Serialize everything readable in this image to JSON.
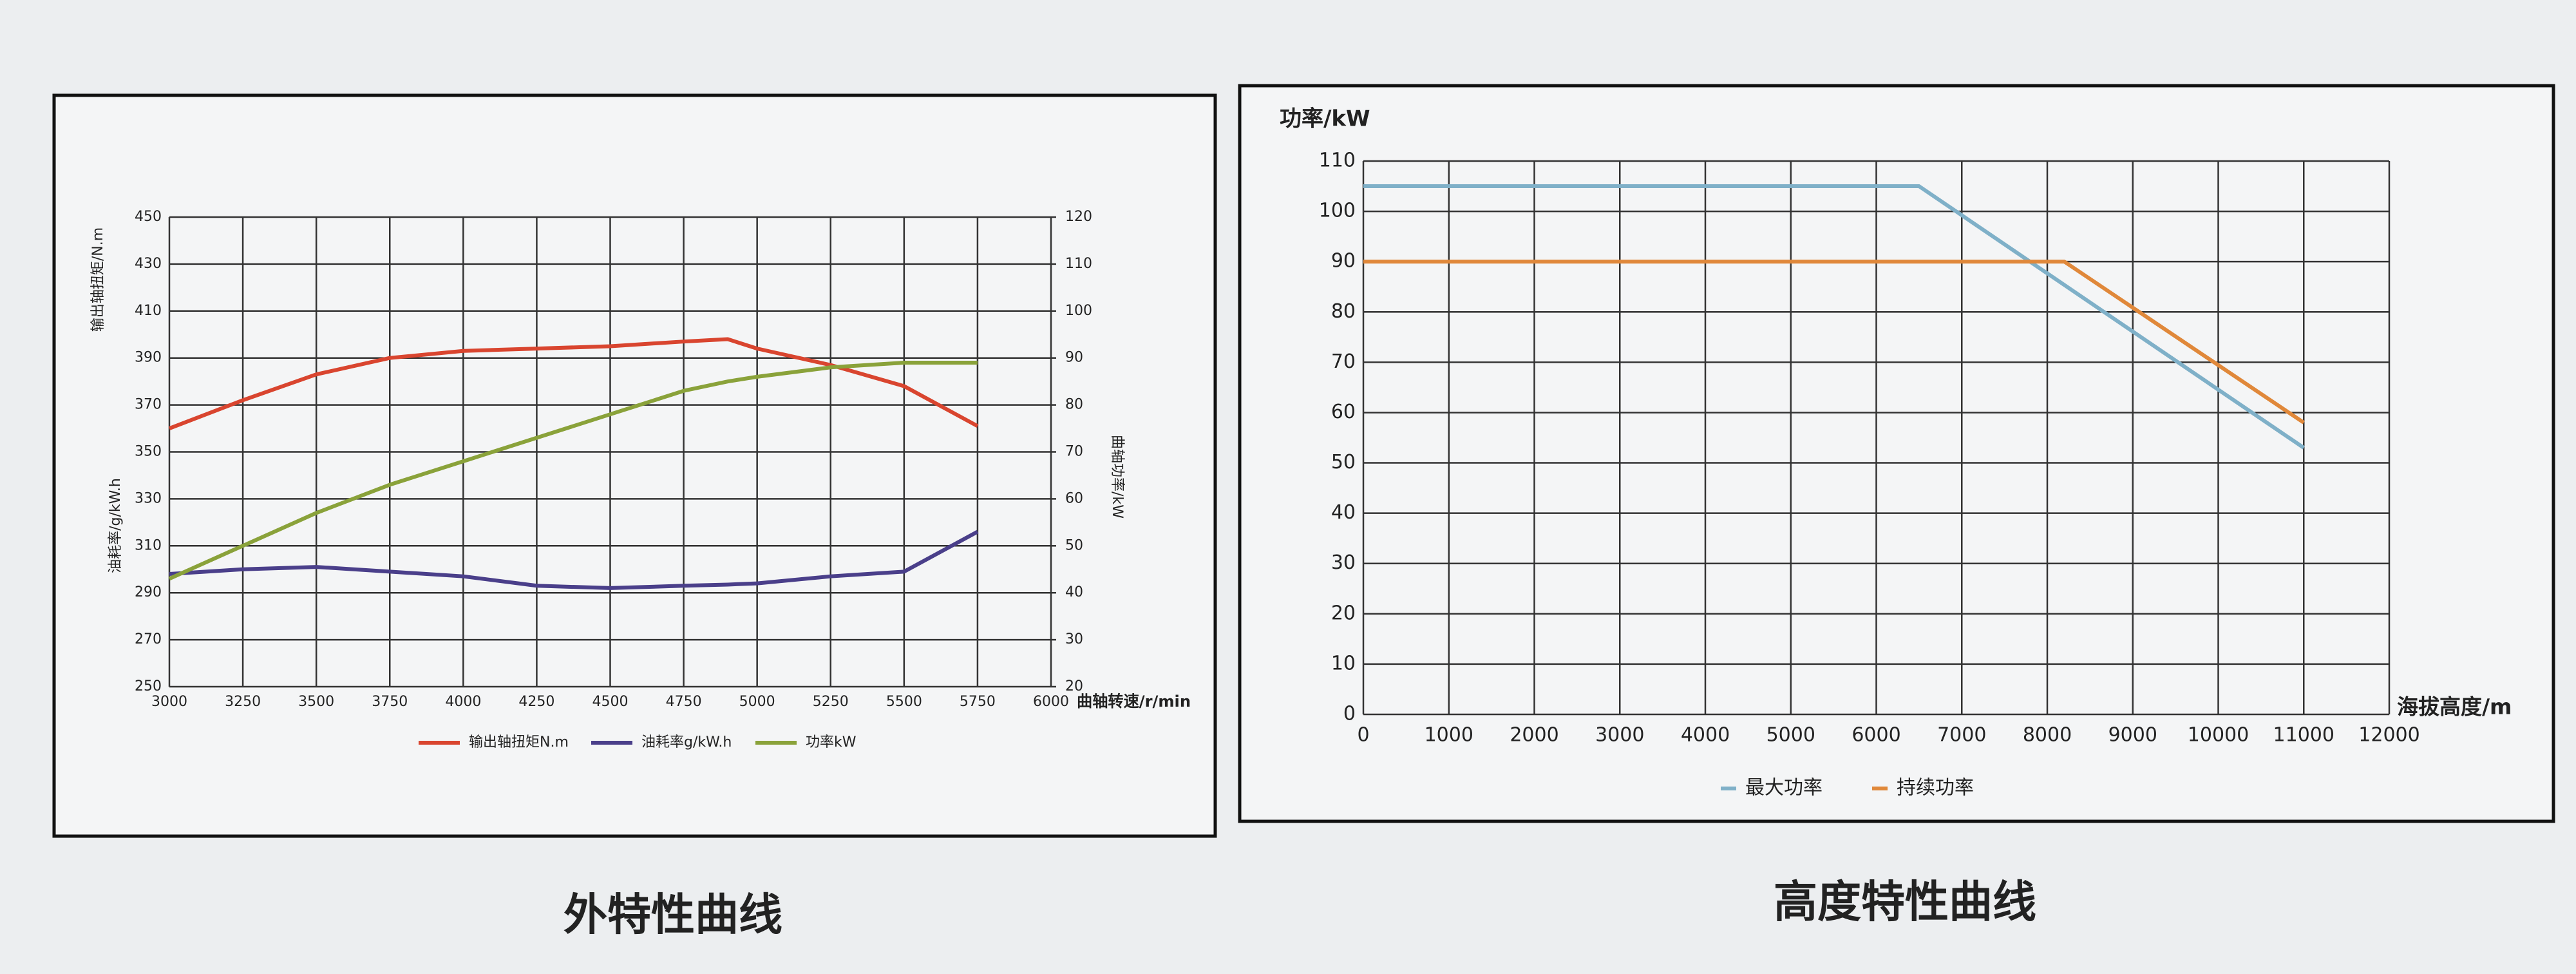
{
  "chart_data": [
    {
      "type": "line",
      "title": "外特性曲线",
      "xlabel": "曲轴转速/r/min",
      "ylabels": [
        "输出轴扭矩/N.m",
        "油耗率/g/kW.h"
      ],
      "y2label": "曲轴功率/kW",
      "x": [
        3000,
        3250,
        3500,
        3750,
        4000,
        4250,
        4500,
        4750,
        4900,
        5000,
        5250,
        5500,
        5750
      ],
      "xlim": [
        3000,
        6000
      ],
      "xticks": [
        3000,
        3250,
        3500,
        3750,
        4000,
        4250,
        4500,
        4750,
        5000,
        5250,
        5500,
        5750,
        6000
      ],
      "ylim": [
        250,
        450
      ],
      "yticks": [
        250,
        270,
        290,
        310,
        330,
        350,
        370,
        390,
        410,
        430,
        450
      ],
      "y2lim": [
        20,
        120
      ],
      "y2ticks": [
        20,
        30,
        40,
        50,
        60,
        70,
        80,
        90,
        100,
        110,
        120
      ],
      "grid": true,
      "legend": "bottom",
      "series": [
        {
          "name": "输出轴扭矩N.m",
          "color": "#d9452f",
          "values": [
            360,
            372,
            383,
            390,
            393,
            394,
            395,
            397,
            398,
            394,
            387,
            378,
            361
          ]
        },
        {
          "name": "油耗率g/kW.h",
          "color": "#4a3f8a",
          "values": [
            298,
            300,
            301,
            299,
            297,
            293,
            292,
            293,
            293.5,
            294,
            297,
            299,
            316
          ]
        },
        {
          "name": "功率kW",
          "color": "#8aa23a",
          "axis": "y2",
          "values": [
            43,
            50,
            57,
            63,
            68,
            73,
            78,
            83,
            85,
            86,
            88,
            89,
            89
          ]
        }
      ]
    },
    {
      "type": "line",
      "title": "高度特性曲线",
      "xlabel": "海拔高度/m",
      "ylabel": "功率/kW",
      "xlim": [
        0,
        12000
      ],
      "xticks": [
        0,
        1000,
        2000,
        3000,
        4000,
        5000,
        6000,
        7000,
        8000,
        9000,
        10000,
        11000,
        12000
      ],
      "ylim": [
        0,
        110
      ],
      "yticks": [
        0,
        10,
        20,
        30,
        40,
        50,
        60,
        70,
        80,
        90,
        100,
        110
      ],
      "grid": true,
      "legend": "bottom",
      "series": [
        {
          "name": "最大功率",
          "color": "#7fb0c8",
          "x": [
            0,
            6500,
            11000
          ],
          "values": [
            105,
            105,
            53
          ]
        },
        {
          "name": "持续功率",
          "color": "#e0883a",
          "x": [
            0,
            8200,
            11000
          ],
          "values": [
            90,
            90,
            58
          ]
        }
      ]
    }
  ]
}
